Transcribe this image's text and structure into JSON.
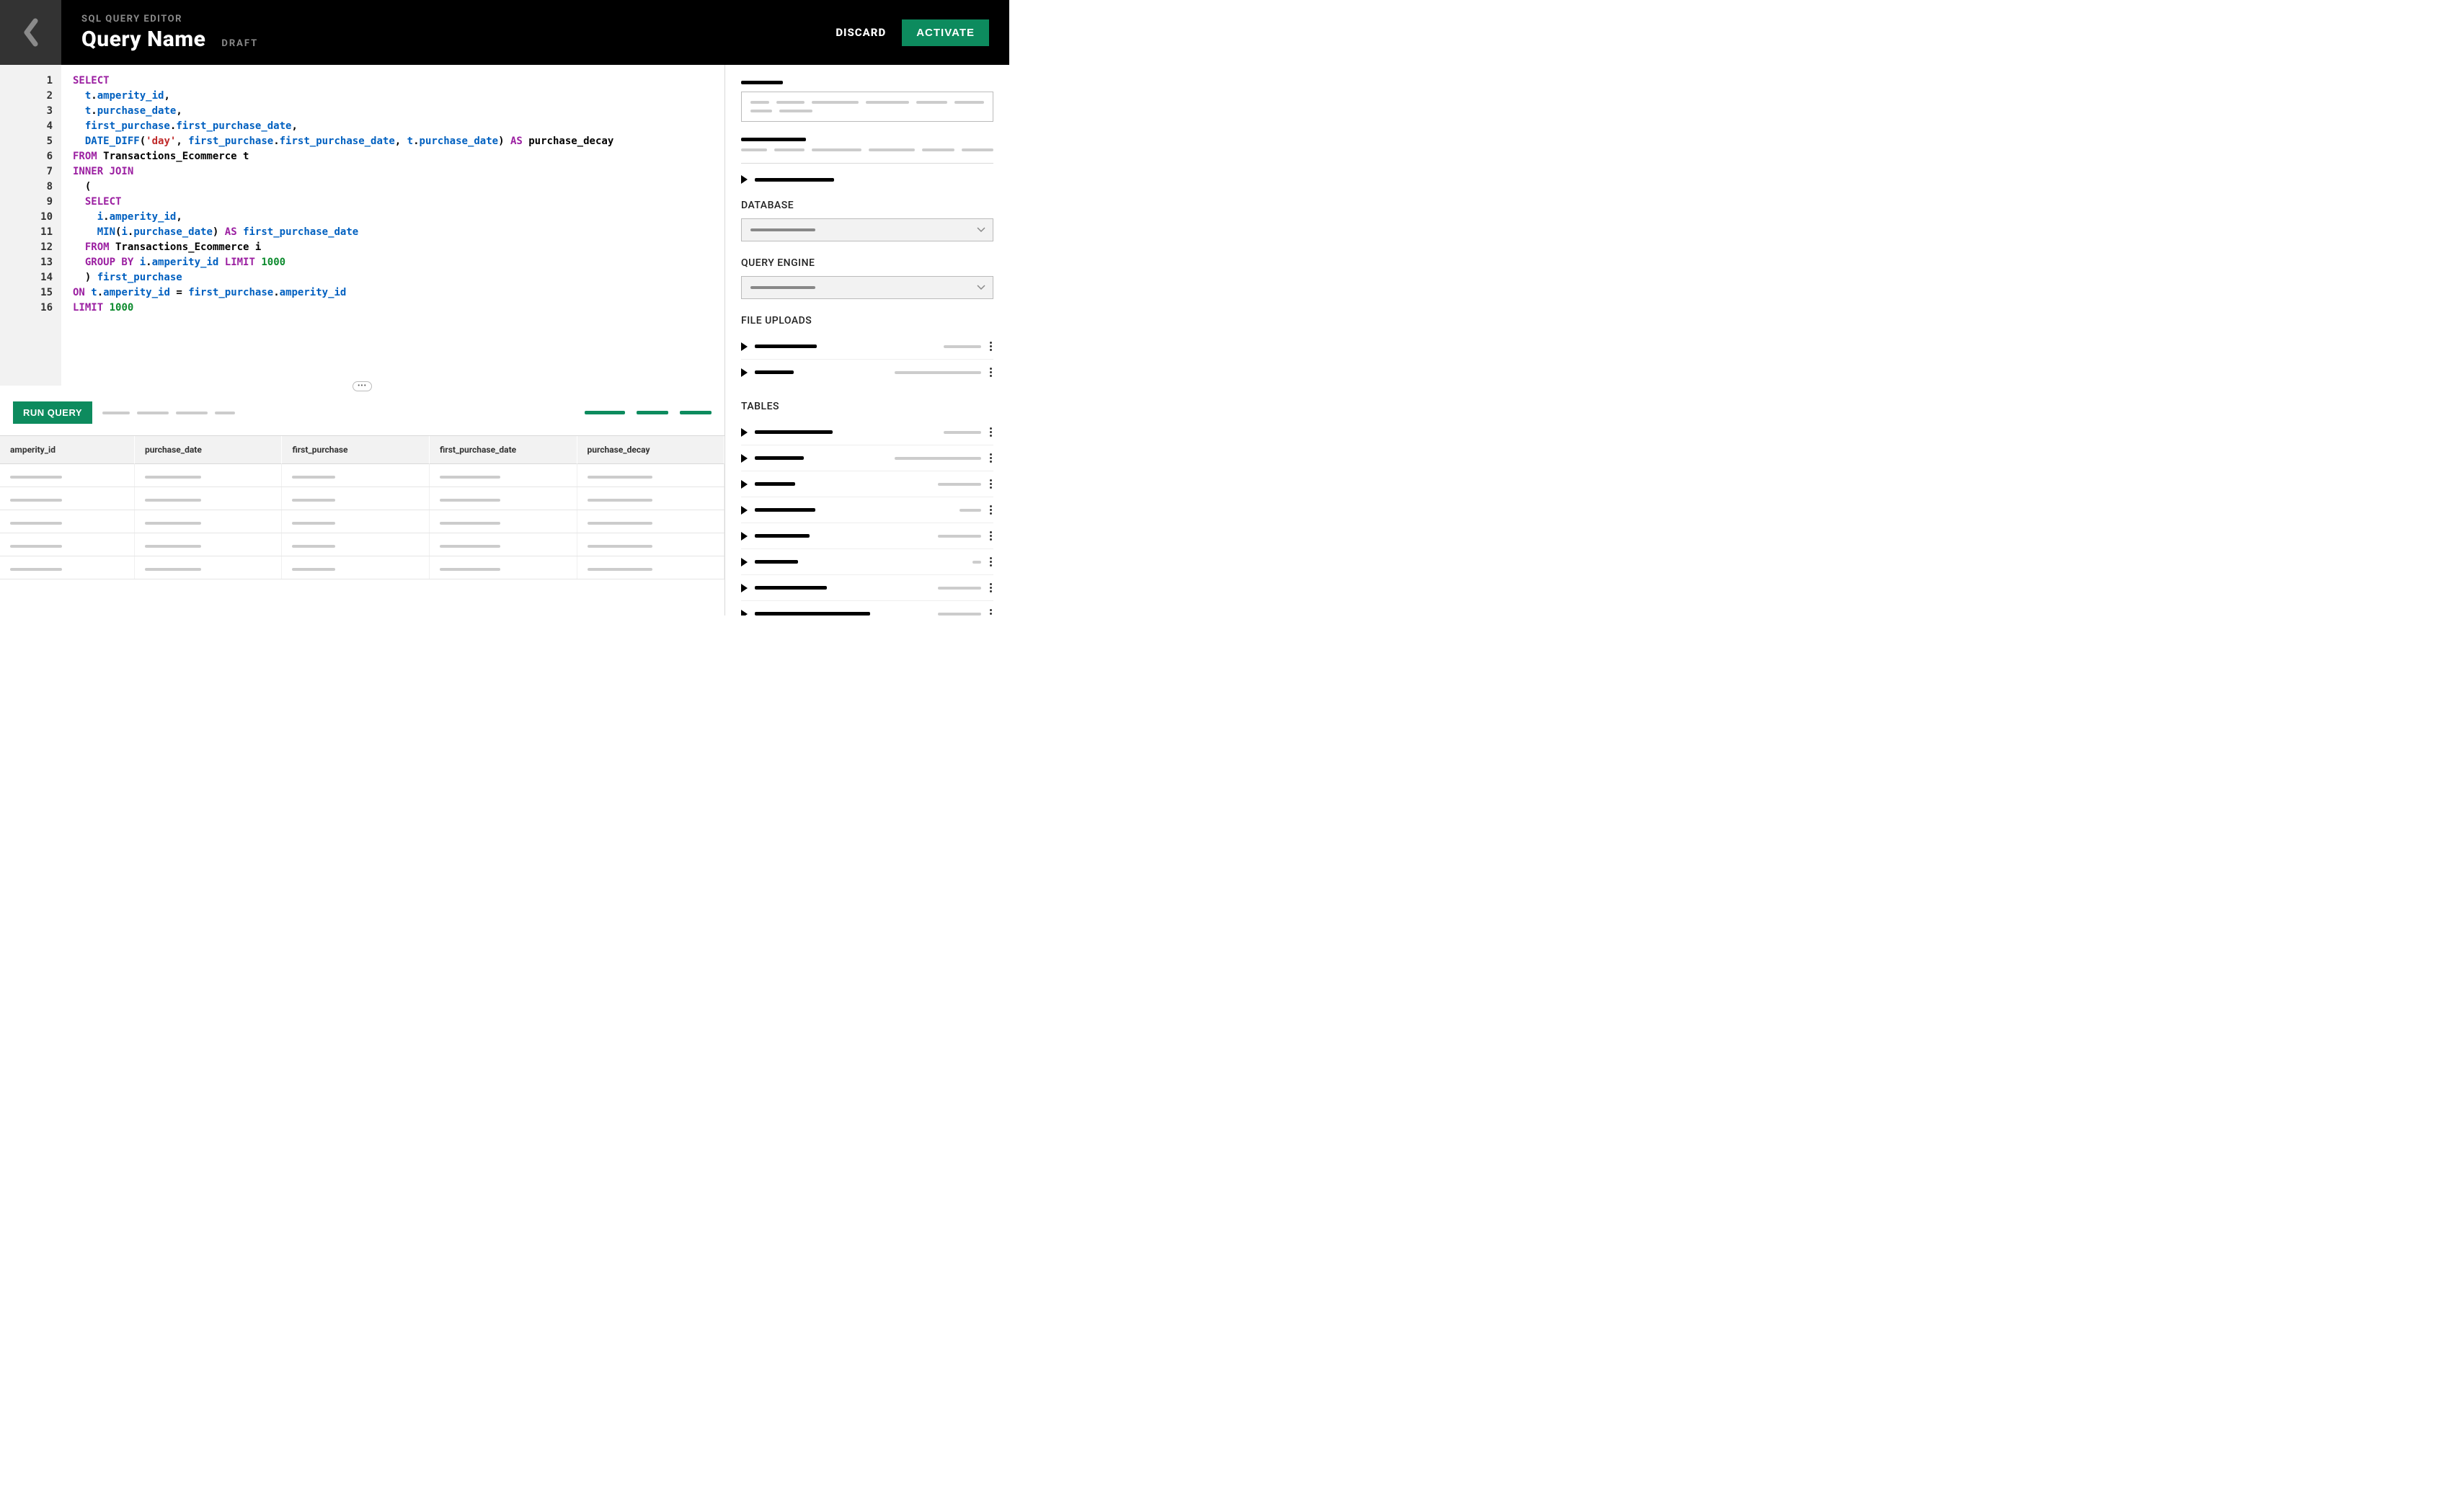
{
  "header": {
    "subtitle": "SQL QUERY EDITOR",
    "title": "Query Name",
    "status": "DRAFT",
    "discard": "DISCARD",
    "activate": "ACTIVATE"
  },
  "colors": {
    "accent_green": "#0d8b5e",
    "header_bg": "#000000",
    "back_bg": "#333333",
    "keyword": "#9b1fa1",
    "identifier_blue": "#0060c0",
    "string_red": "#c02a2a",
    "number_green": "#0d8b2e"
  },
  "editor": {
    "line_count": 16,
    "lines": [
      [
        [
          "kw",
          "SELECT"
        ]
      ],
      [
        [
          "sp",
          "  "
        ],
        [
          "col",
          "t"
        ],
        [
          "id",
          "."
        ],
        [
          "col",
          "amperity_id"
        ],
        [
          "id",
          ","
        ]
      ],
      [
        [
          "sp",
          "  "
        ],
        [
          "col",
          "t"
        ],
        [
          "id",
          "."
        ],
        [
          "col",
          "purchase_date"
        ],
        [
          "id",
          ","
        ]
      ],
      [
        [
          "sp",
          "  "
        ],
        [
          "col",
          "first_purchase"
        ],
        [
          "id",
          "."
        ],
        [
          "col",
          "first_purchase_date"
        ],
        [
          "id",
          ","
        ]
      ],
      [
        [
          "sp",
          "  "
        ],
        [
          "fn",
          "DATE_DIFF"
        ],
        [
          "id",
          "("
        ],
        [
          "str",
          "'day'"
        ],
        [
          "id",
          ", "
        ],
        [
          "col",
          "first_purchase"
        ],
        [
          "id",
          "."
        ],
        [
          "col",
          "first_purchase_date"
        ],
        [
          "id",
          ", "
        ],
        [
          "col",
          "t"
        ],
        [
          "id",
          "."
        ],
        [
          "col",
          "purchase_date"
        ],
        [
          "id",
          ") "
        ],
        [
          "kw",
          "AS"
        ],
        [
          "id",
          " purchase_decay"
        ]
      ],
      [
        [
          "kw",
          "FROM"
        ],
        [
          "id",
          " Transactions_Ecommerce t"
        ]
      ],
      [
        [
          "kw",
          "INNER JOIN"
        ]
      ],
      [
        [
          "sp",
          "  "
        ],
        [
          "id",
          "("
        ]
      ],
      [
        [
          "sp",
          "  "
        ],
        [
          "kw",
          "SELECT"
        ]
      ],
      [
        [
          "sp",
          "    "
        ],
        [
          "col",
          "i"
        ],
        [
          "id",
          "."
        ],
        [
          "col",
          "amperity_id"
        ],
        [
          "id",
          ","
        ]
      ],
      [
        [
          "sp",
          "    "
        ],
        [
          "fn",
          "MIN"
        ],
        [
          "id",
          "("
        ],
        [
          "col",
          "i"
        ],
        [
          "id",
          "."
        ],
        [
          "col",
          "purchase_date"
        ],
        [
          "id",
          ") "
        ],
        [
          "kw",
          "AS"
        ],
        [
          "id",
          " "
        ],
        [
          "col",
          "first_purchase_date"
        ]
      ],
      [
        [
          "sp",
          "  "
        ],
        [
          "kw",
          "FROM"
        ],
        [
          "id",
          " Transactions_Ecommerce i"
        ]
      ],
      [
        [
          "sp",
          "  "
        ],
        [
          "kw",
          "GROUP BY"
        ],
        [
          "id",
          " "
        ],
        [
          "col",
          "i"
        ],
        [
          "id",
          "."
        ],
        [
          "col",
          "amperity_id"
        ],
        [
          "id",
          " "
        ],
        [
          "kw",
          "LIMIT"
        ],
        [
          "id",
          " "
        ],
        [
          "num",
          "1000"
        ]
      ],
      [
        [
          "sp",
          "  "
        ],
        [
          "id",
          ") "
        ],
        [
          "col",
          "first_purchase"
        ]
      ],
      [
        [
          "kw",
          "ON"
        ],
        [
          "id",
          " "
        ],
        [
          "col",
          "t"
        ],
        [
          "id",
          "."
        ],
        [
          "col",
          "amperity_id"
        ],
        [
          "id",
          " = "
        ],
        [
          "col",
          "first_purchase"
        ],
        [
          "id",
          "."
        ],
        [
          "col",
          "amperity_id"
        ]
      ],
      [
        [
          "kw",
          "LIMIT"
        ],
        [
          "id",
          " "
        ],
        [
          "num",
          "1000"
        ]
      ]
    ]
  },
  "results": {
    "run_label": "RUN QUERY",
    "status_bars": [
      38,
      44,
      44,
      28
    ],
    "action_bars": [
      56,
      44,
      44
    ],
    "columns": [
      "amperity_id",
      "purchase_date",
      "first_purchase",
      "first_purchase_date",
      "purchase_decay"
    ],
    "placeholder_row_widths": [
      72,
      78,
      60,
      84,
      90
    ],
    "placeholder_row_count": 5
  },
  "sidebar": {
    "top_label_width": 58,
    "box_stub_rows": [
      [
        30,
        46,
        76,
        70,
        50,
        48
      ],
      [
        30,
        46
      ]
    ],
    "section2_label_width": 90,
    "section2_stub_row": [
      40,
      46,
      76,
      70,
      50,
      48
    ],
    "expand_row_width": 110,
    "database_label": "DATABASE",
    "engine_label": "QUERY ENGINE",
    "uploads_label": "FILE UPLOADS",
    "tables_label": "TABLES",
    "uploads": [
      {
        "label_w": 86,
        "meta_w": 52
      },
      {
        "label_w": 54,
        "meta_w": 120
      }
    ],
    "tables": [
      {
        "label_w": 108,
        "meta_w": 52
      },
      {
        "label_w": 68,
        "meta_w": 120
      },
      {
        "label_w": 56,
        "meta_w": 60
      },
      {
        "label_w": 84,
        "meta_w": 30
      },
      {
        "label_w": 76,
        "meta_w": 60
      },
      {
        "label_w": 60,
        "meta_w": 12
      },
      {
        "label_w": 100,
        "meta_w": 60
      },
      {
        "label_w": 160,
        "meta_w": 60
      }
    ]
  }
}
